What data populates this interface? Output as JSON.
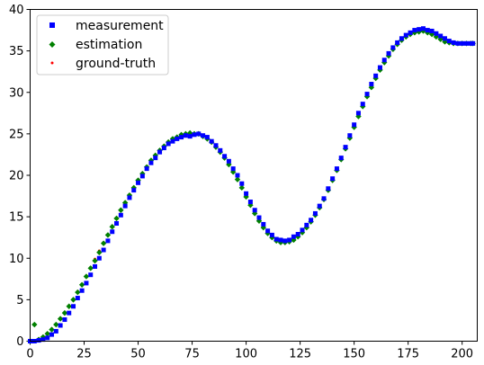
{
  "chart_data": {
    "type": "scatter",
    "title": "",
    "xlabel": "",
    "ylabel": "",
    "xlim": [
      0,
      207
    ],
    "ylim": [
      0,
      40
    ],
    "xticks": [
      0,
      25,
      50,
      75,
      100,
      125,
      150,
      175,
      200
    ],
    "yticks": [
      0,
      5,
      10,
      15,
      20,
      25,
      30,
      35,
      40
    ],
    "grid": false,
    "legend_position": "top-left",
    "series": [
      {
        "name": "measurement",
        "marker": "square",
        "color": "#0000ff"
      },
      {
        "name": "estimation",
        "marker": "diamond",
        "color": "#008000"
      },
      {
        "name": "ground-truth",
        "marker": "dot",
        "color": "#ff0000"
      }
    ],
    "x": [
      0,
      2,
      4,
      6,
      8,
      10,
      12,
      14,
      16,
      18,
      20,
      22,
      24,
      26,
      28,
      30,
      32,
      34,
      36,
      38,
      40,
      42,
      44,
      46,
      48,
      50,
      52,
      54,
      56,
      58,
      60,
      62,
      64,
      66,
      68,
      70,
      72,
      74,
      76,
      78,
      80,
      82,
      84,
      86,
      88,
      90,
      92,
      94,
      96,
      98,
      100,
      102,
      104,
      106,
      108,
      110,
      112,
      114,
      116,
      118,
      120,
      122,
      124,
      126,
      128,
      130,
      132,
      134,
      136,
      138,
      140,
      142,
      144,
      146,
      148,
      150,
      152,
      154,
      156,
      158,
      160,
      162,
      164,
      166,
      168,
      170,
      172,
      174,
      176,
      178,
      180,
      182,
      184,
      186,
      188,
      190,
      192,
      194,
      196,
      198,
      200,
      202,
      204,
      205
    ],
    "ground_truth": [
      0,
      0.1,
      0.3,
      0.6,
      1.0,
      1.5,
      2.1,
      2.8,
      3.5,
      4.3,
      5.1,
      6.0,
      6.9,
      7.9,
      8.9,
      9.9,
      10.9,
      11.9,
      12.9,
      13.9,
      14.9,
      15.9,
      16.8,
      17.7,
      18.6,
      19.5,
      20.3,
      21.1,
      21.8,
      22.5,
      23.1,
      23.6,
      24.1,
      24.4,
      24.7,
      24.9,
      25.0,
      25.0,
      25.0,
      24.9,
      24.7,
      24.4,
      24.0,
      23.5,
      22.9,
      22.2,
      21.4,
      20.5,
      19.6,
      18.6,
      17.5,
      16.5,
      15.5,
      14.6,
      13.8,
      13.1,
      12.6,
      12.2,
      12.0,
      12.0,
      12.1,
      12.3,
      12.7,
      13.2,
      13.8,
      14.5,
      15.3,
      16.2,
      17.2,
      18.3,
      19.5,
      20.7,
      22.0,
      23.3,
      24.6,
      25.9,
      27.2,
      28.4,
      29.6,
      30.7,
      31.8,
      32.8,
      33.7,
      34.5,
      35.3,
      35.9,
      36.4,
      36.8,
      37.1,
      37.3,
      37.4,
      37.4,
      37.3,
      37.1,
      36.8,
      36.5,
      36.2,
      36.0,
      35.9,
      35.9,
      35.9,
      35.9,
      35.9,
      35.9
    ],
    "measurement": [
      0.0,
      0.0,
      0.1,
      0.2,
      0.4,
      0.8,
      1.2,
      1.9,
      2.6,
      3.4,
      4.2,
      5.2,
      6.1,
      7.0,
      8.0,
      9.0,
      10.0,
      11.0,
      12.1,
      13.2,
      14.2,
      15.2,
      16.3,
      17.3,
      18.2,
      19.1,
      19.9,
      20.8,
      21.5,
      22.1,
      22.8,
      23.3,
      23.8,
      24.1,
      24.4,
      24.6,
      24.8,
      24.7,
      24.9,
      25.0,
      24.8,
      24.6,
      24.1,
      23.6,
      23.0,
      22.3,
      21.7,
      20.8,
      20.0,
      19.0,
      17.8,
      16.8,
      15.8,
      14.9,
      14.1,
      13.3,
      12.8,
      12.3,
      12.2,
      12.1,
      12.2,
      12.6,
      12.9,
      13.4,
      14.0,
      14.6,
      15.4,
      16.3,
      17.2,
      18.4,
      19.6,
      20.8,
      22.1,
      23.4,
      24.8,
      26.1,
      27.5,
      28.6,
      29.8,
      31.0,
      32.0,
      33.0,
      33.9,
      34.7,
      35.4,
      36.0,
      36.5,
      36.9,
      37.2,
      37.5,
      37.6,
      37.7,
      37.5,
      37.4,
      37.1,
      36.8,
      36.5,
      36.2,
      36.0,
      35.9,
      35.9,
      35.9,
      35.9,
      35.9
    ],
    "estimation": [
      0.0,
      2.0,
      0.2,
      0.5,
      0.9,
      1.4,
      2.0,
      2.7,
      3.4,
      4.2,
      5.0,
      5.9,
      6.8,
      7.8,
      8.8,
      9.7,
      10.7,
      11.8,
      12.8,
      13.8,
      14.8,
      15.8,
      16.7,
      17.6,
      18.5,
      19.4,
      20.2,
      21.0,
      21.8,
      22.4,
      23.0,
      23.5,
      24.0,
      24.4,
      24.6,
      24.9,
      25.0,
      25.1,
      25.0,
      25.0,
      24.7,
      24.4,
      24.0,
      23.4,
      22.8,
      22.1,
      21.3,
      20.4,
      19.5,
      18.5,
      17.4,
      16.4,
      15.4,
      14.5,
      13.7,
      13.0,
      12.5,
      12.1,
      11.9,
      11.9,
      12.0,
      12.2,
      12.6,
      13.1,
      13.7,
      14.4,
      15.2,
      16.1,
      17.1,
      18.2,
      19.4,
      20.6,
      21.9,
      23.2,
      24.5,
      25.8,
      27.1,
      28.3,
      29.5,
      30.6,
      31.7,
      32.7,
      33.6,
      34.4,
      35.2,
      35.8,
      36.3,
      36.7,
      37.0,
      37.2,
      37.3,
      37.4,
      37.2,
      37.0,
      36.7,
      36.4,
      36.1,
      36.0,
      35.9,
      35.9,
      35.9,
      35.9,
      35.9,
      35.9
    ]
  },
  "legend": {
    "measurement": "measurement",
    "estimation": "estimation",
    "ground_truth": "ground-truth"
  }
}
